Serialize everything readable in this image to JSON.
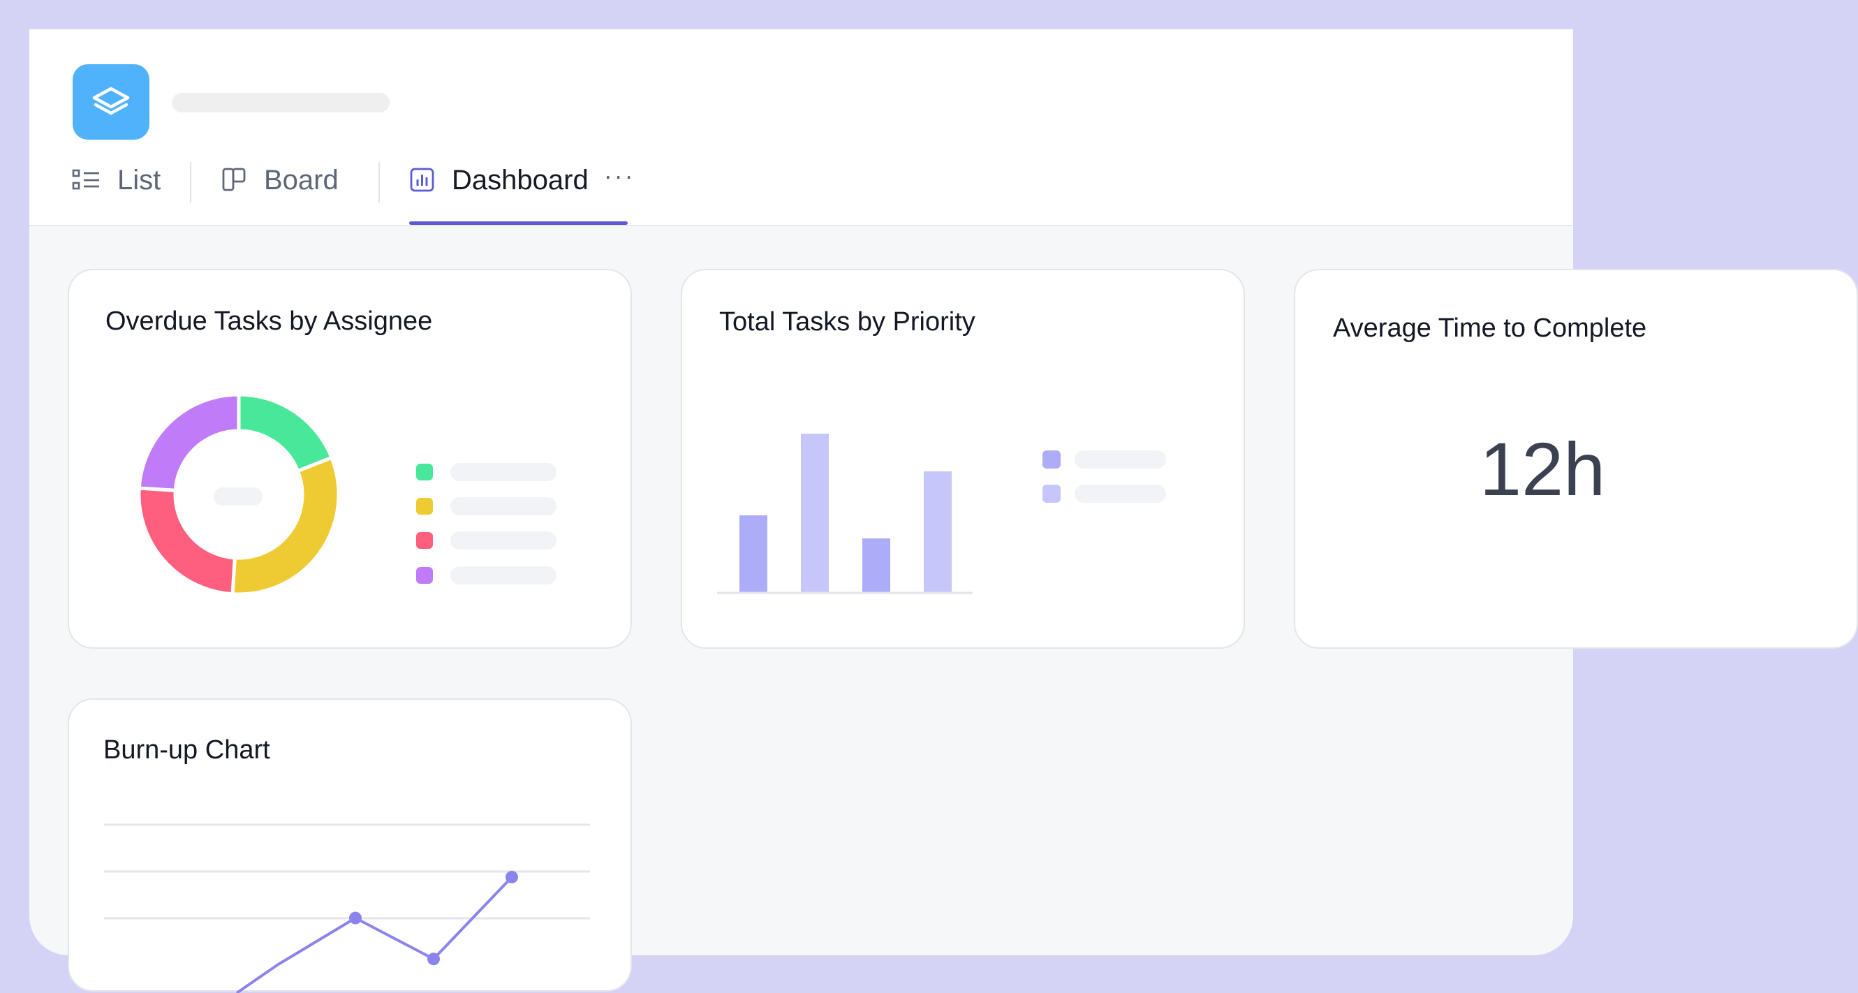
{
  "header": {
    "title_placeholder": "",
    "tabs": [
      {
        "label": "List",
        "icon": "list-icon",
        "active": false
      },
      {
        "label": "Board",
        "icon": "board-icon",
        "active": false
      },
      {
        "label": "Dashboard",
        "icon": "chart-icon",
        "active": true
      }
    ],
    "more": "···",
    "accent": "#5b5bd6"
  },
  "cards": {
    "overdue": {
      "title": "Overdue Tasks by Assignee"
    },
    "priority": {
      "title": "Total Tasks by Priority"
    },
    "average": {
      "title": "Average Time to Complete",
      "value": "12h"
    },
    "burnup": {
      "title": "Burn-up Chart"
    }
  },
  "chart_data": [
    {
      "type": "pie",
      "donut": true,
      "values": [
        19,
        32,
        25,
        24
      ],
      "colors": [
        "#48e79a",
        "#eecb33",
        "#ff5f7e",
        "#c07cf8"
      ]
    },
    {
      "type": "bar",
      "series": [
        {
          "values": [
            37,
            76,
            26,
            58
          ],
          "colors": [
            "#acacf9",
            "#c7c6fb",
            "#acacf9",
            "#c7c6fb"
          ]
        }
      ],
      "legend_colors": [
        "#acacf9",
        "#c7c6fb"
      ]
    },
    {
      "type": "line",
      "values": [
        0,
        1.15,
        0.15,
        2.15
      ],
      "grid": true,
      "color": "#8b84ec"
    }
  ]
}
